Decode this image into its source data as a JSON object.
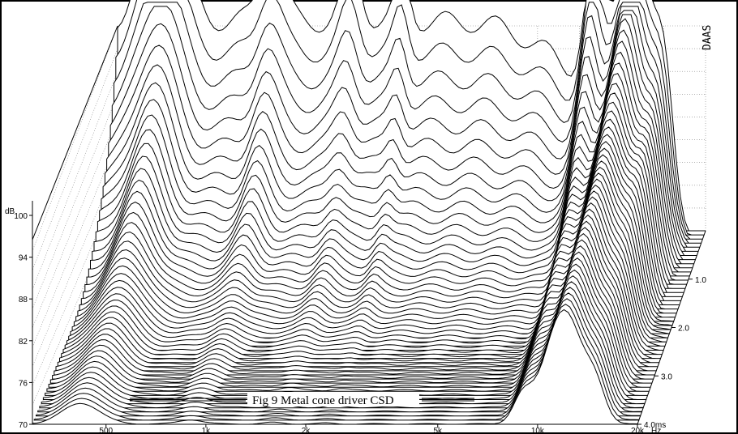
{
  "chart_data": {
    "type": "waterfall",
    "title": "Fig 9 Metal cone driver CSD",
    "brand": "DAAS",
    "y_axis": {
      "label": "dB",
      "ticks": [
        "70",
        "76",
        "82",
        "88",
        "94",
        "100"
      ],
      "range": [
        70,
        104
      ]
    },
    "x_axis": {
      "unit": "Hz",
      "scale": "log",
      "ticks": [
        "500",
        "1k",
        "2k",
        "5k",
        "10k",
        "20k"
      ],
      "range": [
        300,
        20000
      ]
    },
    "z_axis": {
      "unit": "ms",
      "ticks": [
        "1.0",
        "2.0",
        "3.0",
        "4.0ms"
      ],
      "range": [
        0,
        4.0
      ]
    },
    "slice_count": 48,
    "color_line": "#000000",
    "color_grid": "#808080"
  },
  "ui": {
    "figure_caption": "Fig 9 Metal cone driver CSD"
  }
}
